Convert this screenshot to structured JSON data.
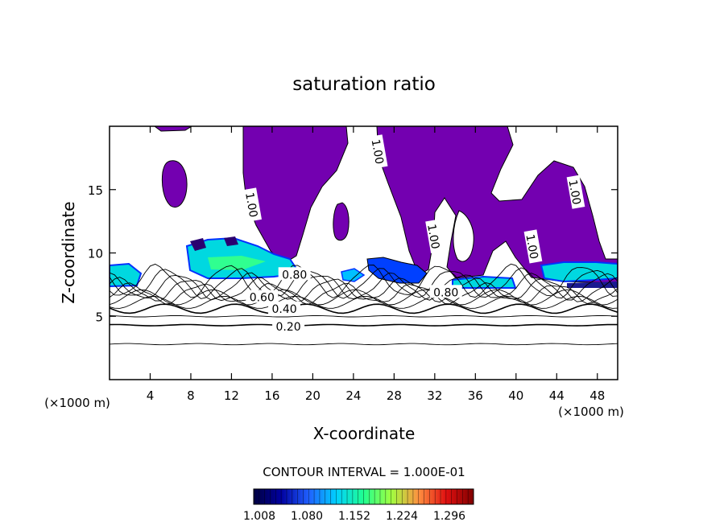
{
  "chart_data": {
    "type": "contour",
    "title": "saturation ratio",
    "xlabel": "X-coordinate",
    "ylabel": "Z-coordinate",
    "x_unit": "(×1000 m)",
    "x_unit_right": "(×1000 m)",
    "xlim": [
      0,
      50
    ],
    "ylim": [
      0,
      20
    ],
    "xticks": [
      4,
      8,
      12,
      16,
      20,
      24,
      28,
      32,
      36,
      40,
      44,
      48
    ],
    "yticks": [
      5,
      10,
      15
    ],
    "contour_interval_text": "CONTOUR INTERVAL = 1.000E-01",
    "contour_levels": [
      0.2,
      0.4,
      0.6,
      0.8,
      1.0
    ],
    "contour_labels": [
      {
        "text": "0.20",
        "x": 17.6,
        "z": 4.2
      },
      {
        "text": "0.40",
        "x": 17.2,
        "z": 5.6
      },
      {
        "text": "0.60",
        "x": 15.0,
        "z": 6.5
      },
      {
        "text": "0.80",
        "x": 33.1,
        "z": 6.9
      },
      {
        "text": "0.80",
        "x": 18.2,
        "z": 8.3
      },
      {
        "text": "1.00",
        "x": 14.0,
        "z": 13.8
      },
      {
        "text": "1.00",
        "x": 31.9,
        "z": 11.3
      },
      {
        "text": "1.00",
        "x": 26.4,
        "z": 18.0
      },
      {
        "text": "1.00",
        "x": 41.6,
        "z": 10.5
      },
      {
        "text": "1.00",
        "x": 45.8,
        "z": 14.8
      }
    ],
    "colorbar": {
      "ticks": [
        "1.008",
        "1.080",
        "1.152",
        "1.224",
        "1.296"
      ],
      "colors": [
        "#000040",
        "#0000a0",
        "#2060ff",
        "#00d0ff",
        "#20ff90",
        "#a0ff40",
        "#ff9040",
        "#e01010",
        "#800000"
      ]
    },
    "colors": {
      "supersaturated_fill": "#7300b0",
      "cyan_band": "#00e0e0",
      "green_band": "#30ff90",
      "blue_band": "#0044ff",
      "axis": "#000000"
    }
  }
}
